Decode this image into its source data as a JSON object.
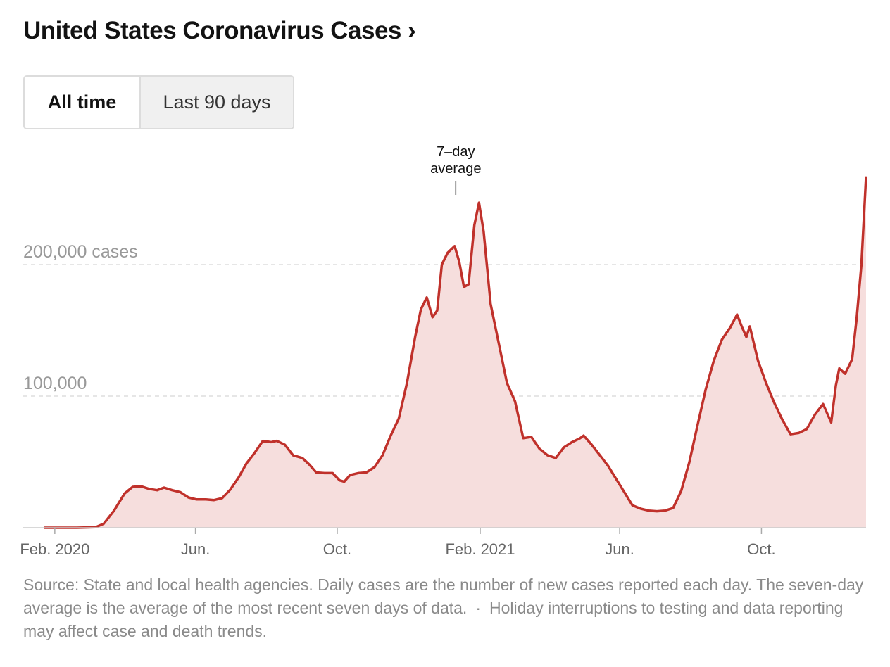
{
  "header": {
    "title": "United States Coronavirus Cases ›"
  },
  "toggle": {
    "all_time": "All time",
    "last_90": "Last 90 days"
  },
  "chart_data": {
    "type": "area",
    "annotation": "7–day average",
    "annotation_lines": [
      "7–day",
      "average"
    ],
    "annotation_at": "2021-01-11",
    "ylim": [
      0,
      260000
    ],
    "ytick_values": [
      200000,
      100000
    ],
    "ytick_labels": [
      "200,000 cases",
      "100,000"
    ],
    "grid": "dashed horizontal",
    "xtick_dates": [
      "2020-02-01",
      "2020-06-01",
      "2020-10-01",
      "2021-02-01",
      "2021-06-01",
      "2021-10-01"
    ],
    "xtick_labels": [
      "Feb. 2020",
      "Jun.",
      "Oct.",
      "Feb. 2021",
      "Jun.",
      "Oct."
    ],
    "line_color": "#c0312b",
    "fill_color": "#f6dedd",
    "grid_color": "#dddddd",
    "points": [
      [
        "2020-01-23",
        0
      ],
      [
        "2020-02-20",
        0
      ],
      [
        "2020-03-07",
        400
      ],
      [
        "2020-03-14",
        3000
      ],
      [
        "2020-03-23",
        13000
      ],
      [
        "2020-04-01",
        26000
      ],
      [
        "2020-04-08",
        31000
      ],
      [
        "2020-04-15",
        31500
      ],
      [
        "2020-04-22",
        29500
      ],
      [
        "2020-04-29",
        28500
      ],
      [
        "2020-05-05",
        30500
      ],
      [
        "2020-05-12",
        28500
      ],
      [
        "2020-05-19",
        27000
      ],
      [
        "2020-05-26",
        23000
      ],
      [
        "2020-06-02",
        21500
      ],
      [
        "2020-06-10",
        21500
      ],
      [
        "2020-06-17",
        21000
      ],
      [
        "2020-06-24",
        22500
      ],
      [
        "2020-07-01",
        29000
      ],
      [
        "2020-07-08",
        38000
      ],
      [
        "2020-07-15",
        49000
      ],
      [
        "2020-07-22",
        57000
      ],
      [
        "2020-07-29",
        66000
      ],
      [
        "2020-08-05",
        65000
      ],
      [
        "2020-08-10",
        66000
      ],
      [
        "2020-08-17",
        63000
      ],
      [
        "2020-08-24",
        55000
      ],
      [
        "2020-09-01",
        53000
      ],
      [
        "2020-09-07",
        48000
      ],
      [
        "2020-09-13",
        42000
      ],
      [
        "2020-09-20",
        41500
      ],
      [
        "2020-09-27",
        41500
      ],
      [
        "2020-10-03",
        36000
      ],
      [
        "2020-10-07",
        35000
      ],
      [
        "2020-10-12",
        40000
      ],
      [
        "2020-10-19",
        41500
      ],
      [
        "2020-10-26",
        42000
      ],
      [
        "2020-11-02",
        46000
      ],
      [
        "2020-11-09",
        55000
      ],
      [
        "2020-11-16",
        70000
      ],
      [
        "2020-11-23",
        83000
      ],
      [
        "2020-11-30",
        110000
      ],
      [
        "2020-12-07",
        145000
      ],
      [
        "2020-12-12",
        166000
      ],
      [
        "2020-12-17",
        175000
      ],
      [
        "2020-12-22",
        160000
      ],
      [
        "2020-12-26",
        165000
      ],
      [
        "2020-12-30",
        200000
      ],
      [
        "2021-01-04",
        209000
      ],
      [
        "2021-01-10",
        214000
      ],
      [
        "2021-01-14",
        202000
      ],
      [
        "2021-01-18",
        183000
      ],
      [
        "2021-01-22",
        185000
      ],
      [
        "2021-01-27",
        230000
      ],
      [
        "2021-01-31",
        247000
      ],
      [
        "2021-02-04",
        225000
      ],
      [
        "2021-02-10",
        170000
      ],
      [
        "2021-02-17",
        140000
      ],
      [
        "2021-02-24",
        110000
      ],
      [
        "2021-03-03",
        96000
      ],
      [
        "2021-03-10",
        68000
      ],
      [
        "2021-03-17",
        69000
      ],
      [
        "2021-03-24",
        60000
      ],
      [
        "2021-03-31",
        55000
      ],
      [
        "2021-04-07",
        53000
      ],
      [
        "2021-04-14",
        61000
      ],
      [
        "2021-04-21",
        65000
      ],
      [
        "2021-04-28",
        68000
      ],
      [
        "2021-05-01",
        70000
      ],
      [
        "2021-05-08",
        63000
      ],
      [
        "2021-05-15",
        55000
      ],
      [
        "2021-05-22",
        47000
      ],
      [
        "2021-05-29",
        37000
      ],
      [
        "2021-06-05",
        27000
      ],
      [
        "2021-06-12",
        17000
      ],
      [
        "2021-06-19",
        14500
      ],
      [
        "2021-06-26",
        13000
      ],
      [
        "2021-07-03",
        12500
      ],
      [
        "2021-07-10",
        13000
      ],
      [
        "2021-07-17",
        15000
      ],
      [
        "2021-07-24",
        28000
      ],
      [
        "2021-07-31",
        50000
      ],
      [
        "2021-08-07",
        78000
      ],
      [
        "2021-08-14",
        105000
      ],
      [
        "2021-08-21",
        127000
      ],
      [
        "2021-08-28",
        143000
      ],
      [
        "2021-09-04",
        152000
      ],
      [
        "2021-09-10",
        162000
      ],
      [
        "2021-09-14",
        153000
      ],
      [
        "2021-09-18",
        145000
      ],
      [
        "2021-09-21",
        153000
      ],
      [
        "2021-09-28",
        127000
      ],
      [
        "2021-10-05",
        110000
      ],
      [
        "2021-10-12",
        95000
      ],
      [
        "2021-10-19",
        82000
      ],
      [
        "2021-10-26",
        71000
      ],
      [
        "2021-11-02",
        72000
      ],
      [
        "2021-11-09",
        75000
      ],
      [
        "2021-11-16",
        86000
      ],
      [
        "2021-11-23",
        94000
      ],
      [
        "2021-11-30",
        80000
      ],
      [
        "2021-12-04",
        108000
      ],
      [
        "2021-12-07",
        121000
      ],
      [
        "2021-12-12",
        117000
      ],
      [
        "2021-12-18",
        128000
      ],
      [
        "2021-12-22",
        160000
      ],
      [
        "2021-12-26",
        200000
      ],
      [
        "2021-12-30",
        267000
      ]
    ]
  },
  "footer": {
    "source_main": "Source: State and local health agencies. Daily cases are the number of new cases reported each day. The seven-day average is the average of the most recent seven days of data.",
    "separator": "·",
    "source_note": "Holiday interruptions to testing and data reporting may affect case and death trends."
  }
}
